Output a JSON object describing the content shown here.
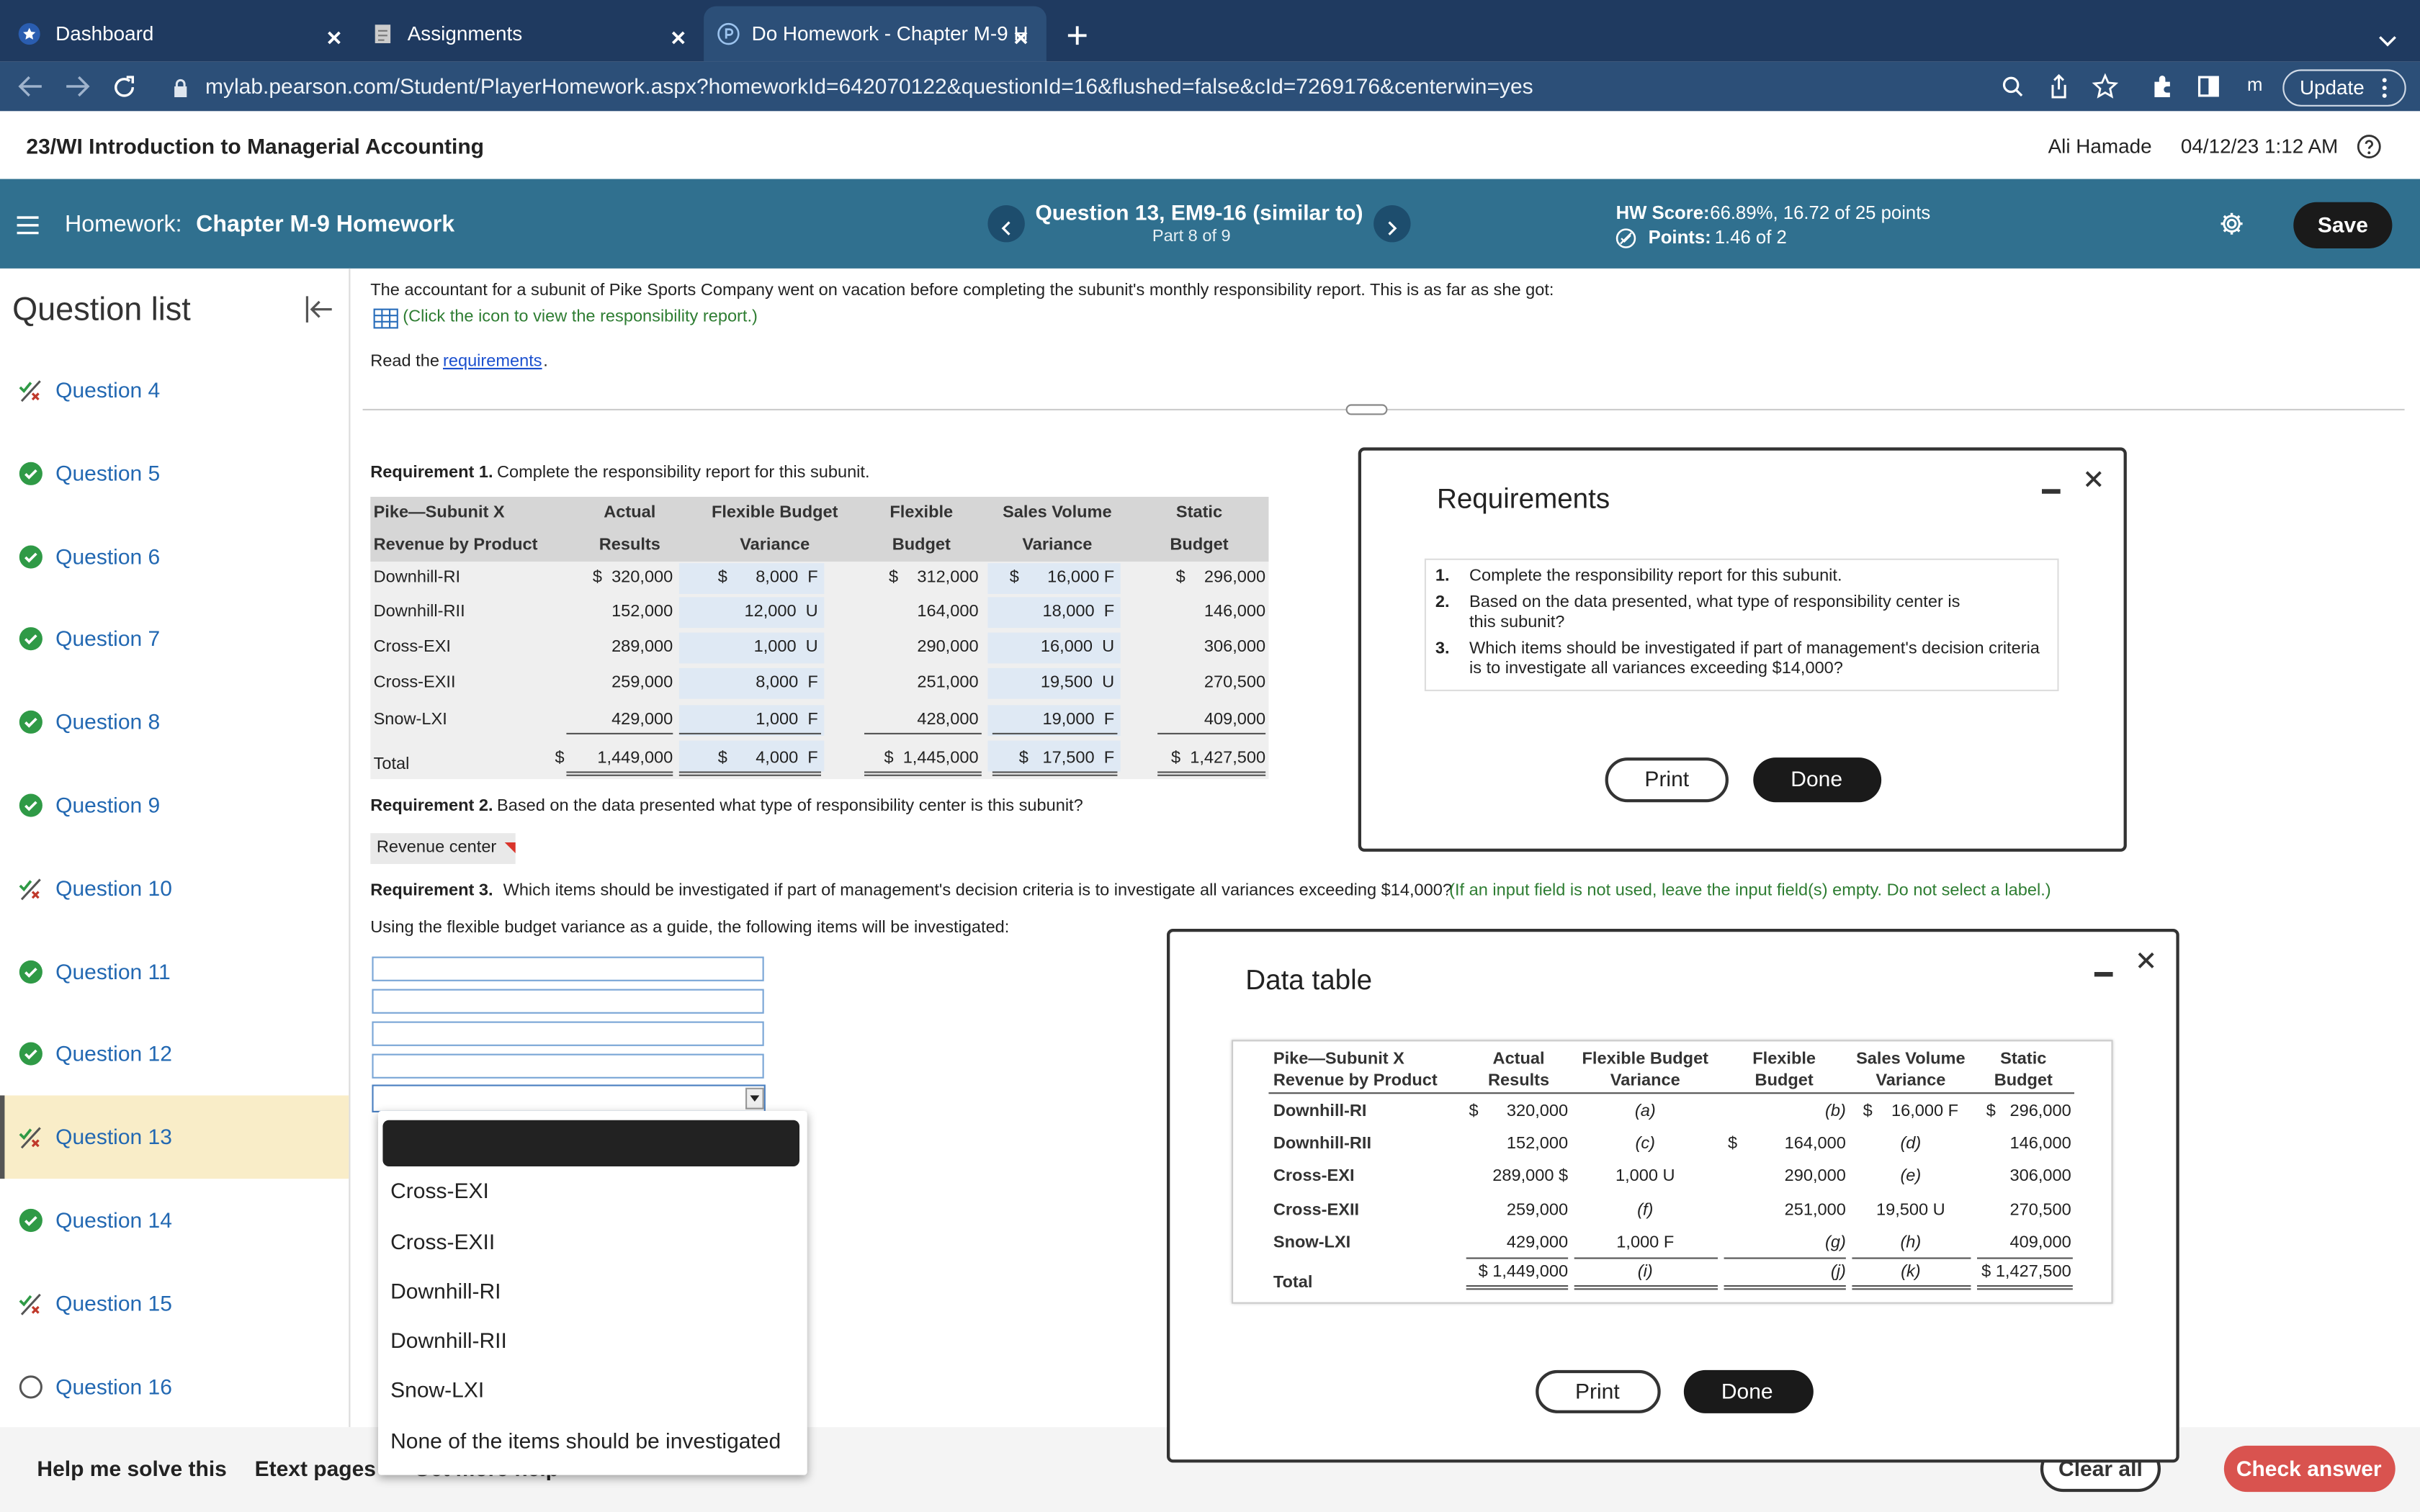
{
  "browser": {
    "tabs": [
      "Dashboard",
      "Assignments",
      "Do Homework - Chapter M-9 H"
    ],
    "url": "mylab.pearson.com/Student/PlayerHomework.aspx?homeworkId=642070122&questionId=16&flushed=false&cId=7269176&centerwin=yes",
    "profile": "m",
    "update": "Update"
  },
  "header": {
    "course": "23/WI Introduction to Managerial Accounting",
    "user": "Ali Hamade",
    "datetime": "04/12/23 1:12 AM"
  },
  "toolbar": {
    "homework_label": "Homework:",
    "homework": "Chapter M-9 Homework",
    "question": "Question 13, EM9-16 (similar to)",
    "part": "Part 8 of 9",
    "hw_score_label": "HW Score:",
    "hw_score": "66.89%, 16.72 of 25 points",
    "points_label": "Points:",
    "points": "1.46 of 2",
    "save": "Save"
  },
  "sidebar": {
    "title": "Question list",
    "active": 9,
    "questions": [
      {
        "label": "Question 4",
        "status": "partial"
      },
      {
        "label": "Question 5",
        "status": "correct"
      },
      {
        "label": "Question 6",
        "status": "correct"
      },
      {
        "label": "Question 7",
        "status": "correct"
      },
      {
        "label": "Question 8",
        "status": "correct"
      },
      {
        "label": "Question 9",
        "status": "correct"
      },
      {
        "label": "Question 10",
        "status": "partial"
      },
      {
        "label": "Question 11",
        "status": "correct"
      },
      {
        "label": "Question 12",
        "status": "correct"
      },
      {
        "label": "Question 13",
        "status": "partial"
      },
      {
        "label": "Question 14",
        "status": "correct"
      },
      {
        "label": "Question 15",
        "status": "partial"
      },
      {
        "label": "Question 16",
        "status": "open"
      }
    ]
  },
  "problem": {
    "intro": "The accountant for a subunit of Pike Sports Company went on vacation before completing the subunit's monthly responsibility report. This is as far as she got:",
    "icon_link": "(Click the icon to view the responsibility report.)",
    "read": "Read the",
    "requirements_link": "requirements",
    "read_end": "."
  },
  "req1": {
    "label": "Requirement 1.",
    "text": "Complete the responsibility report for this subunit.",
    "headers": [
      [
        "Pike—Subunit X",
        "Revenue by Product"
      ],
      [
        "Actual",
        "Results"
      ],
      [
        "Flexible Budget",
        "Variance"
      ],
      [
        "Flexible",
        "Budget"
      ],
      [
        "Sales Volume",
        "Variance"
      ],
      [
        "Static",
        "Budget"
      ]
    ],
    "rows": [
      [
        "Downhill-RI",
        "$  320,000",
        "$      8,000  F",
        "$    312,000",
        "$      16,000 F",
        "$    296,000"
      ],
      [
        "Downhill-RII",
        "152,000",
        "12,000  U",
        "164,000",
        "18,000  F",
        "146,000"
      ],
      [
        "Cross-EXI",
        "289,000",
        "1,000  U",
        "290,000",
        "16,000  U",
        "306,000"
      ],
      [
        "Cross-EXII",
        "259,000",
        "8,000  F",
        "251,000",
        "19,500  U",
        "270,500"
      ],
      [
        "Snow-LXI",
        "429,000",
        "1,000  F",
        "428,000",
        "19,000  F",
        "409,000"
      ],
      [
        "Total",
        "$       1,449,000",
        "$      4,000  F",
        "$  1,445,000",
        "$   17,500  F",
        "$  1,427,500"
      ]
    ]
  },
  "req2": {
    "label": "Requirement 2.",
    "text": "Based on the data presented what type of responsibility center is this subunit?",
    "answer": "Revenue center"
  },
  "req3": {
    "label": "Requirement 3.",
    "text": "Which items should be investigated if part of management's decision criteria is to investigate all variances exceeding $14,000?",
    "note": "(If an input field is not used, leave the input field(s) empty. Do not select a label.)",
    "guide": "Using the flexible budget variance as a guide, the following items will be investigated:",
    "options": [
      "Cross-EXI",
      "Cross-EXII",
      "Downhill-RI",
      "Downhill-RII",
      "Snow-LXI",
      "None of the items should be investigated"
    ]
  },
  "requirements_modal": {
    "title": "Requirements",
    "items": [
      [
        "1.",
        "Complete the responsibility report for this subunit."
      ],
      [
        "2.",
        "Based on the data presented, what type of responsibility center is",
        "this subunit?"
      ],
      [
        "3.",
        "Which items should be investigated if part of management's decision criteria",
        "is to investigate all variances exceeding $14,000?"
      ]
    ],
    "print": "Print",
    "done": "Done"
  },
  "data_modal": {
    "title": "Data table",
    "headers": [
      [
        "Pike—Subunit X",
        "Revenue by Product"
      ],
      [
        "Actual",
        "Results"
      ],
      [
        "Flexible Budget",
        "Variance"
      ],
      [
        "Flexible",
        "Budget"
      ],
      [
        "Sales Volume",
        "Variance"
      ],
      [
        "Static",
        "Budget"
      ]
    ],
    "rows": [
      [
        "Downhill-RI",
        "$      320,000",
        "(a)",
        "(b)",
        "$    16,000 F",
        "$   296,000"
      ],
      [
        "Downhill-RII",
        "152,000",
        "(c)",
        "$          164,000",
        "(d)",
        "146,000"
      ],
      [
        "Cross-EXI",
        "289,000 $",
        "1,000 U",
        "290,000",
        "(e)",
        "306,000"
      ],
      [
        "Cross-EXII",
        "259,000",
        "(f)",
        "251,000",
        "19,500 U",
        "270,500"
      ],
      [
        "Snow-LXI",
        "429,000",
        "1,000 F",
        "(g)",
        "(h)",
        "409,000"
      ],
      [
        "Total",
        "$ 1,449,000",
        "(i)",
        "(j)",
        "(k)",
        "$ 1,427,500"
      ]
    ],
    "print": "Print",
    "done": "Done"
  },
  "footer": {
    "help": "Help me solve this",
    "etext": "Etext pages",
    "more": "Get more help",
    "clear": "Clear all",
    "check": "Check answer"
  }
}
